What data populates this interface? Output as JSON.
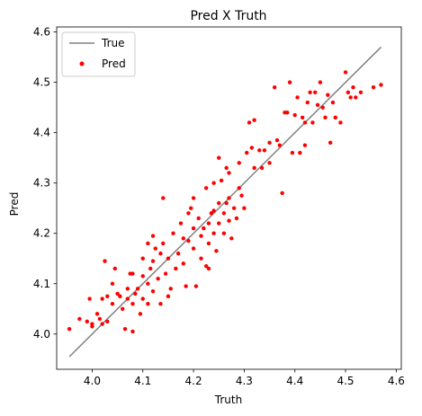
{
  "chart_data": {
    "type": "scatter",
    "title": "Pred X Truth",
    "xlabel": "Truth",
    "ylabel": "Pred",
    "xlim": [
      3.93,
      4.61
    ],
    "ylim": [
      3.93,
      4.61
    ],
    "xticks": [
      "4.0",
      "4.1",
      "4.2",
      "4.3",
      "4.4",
      "4.5",
      "4.6"
    ],
    "yticks": [
      "4.0",
      "4.1",
      "4.2",
      "4.3",
      "4.4",
      "4.5",
      "4.6"
    ],
    "grid": false,
    "legend": {
      "placement": "top-left",
      "entries": [
        {
          "label": "True",
          "marker": "line",
          "color": "#808080"
        },
        {
          "label": "Pred",
          "marker": "dot",
          "color": "#ff0000"
        }
      ]
    },
    "series": [
      {
        "name": "True",
        "kind": "line",
        "color": "#808080",
        "x": [
          3.955,
          4.57
        ],
        "y": [
          3.955,
          4.57
        ]
      },
      {
        "name": "Pred",
        "kind": "scatter",
        "color": "#ff0000",
        "points": [
          [
            3.955,
            4.01
          ],
          [
            3.975,
            4.03
          ],
          [
            3.99,
            4.025
          ],
          [
            3.995,
            4.07
          ],
          [
            4.0,
            4.02
          ],
          [
            4.0,
            4.015
          ],
          [
            4.01,
            4.04
          ],
          [
            4.015,
            4.03
          ],
          [
            4.02,
            4.02
          ],
          [
            4.02,
            4.07
          ],
          [
            4.025,
            4.145
          ],
          [
            4.03,
            4.075
          ],
          [
            4.03,
            4.025
          ],
          [
            4.04,
            4.06
          ],
          [
            4.04,
            4.1
          ],
          [
            4.045,
            4.13
          ],
          [
            4.05,
            4.08
          ],
          [
            4.055,
            4.075
          ],
          [
            4.06,
            4.05
          ],
          [
            4.065,
            4.01
          ],
          [
            4.07,
            4.09
          ],
          [
            4.07,
            4.07
          ],
          [
            4.075,
            4.12
          ],
          [
            4.08,
            4.12
          ],
          [
            4.08,
            4.06
          ],
          [
            4.08,
            4.005
          ],
          [
            4.085,
            4.08
          ],
          [
            4.09,
            4.09
          ],
          [
            4.095,
            4.04
          ],
          [
            4.1,
            4.115
          ],
          [
            4.1,
            4.15
          ],
          [
            4.1,
            4.07
          ],
          [
            4.11,
            4.18
          ],
          [
            4.11,
            4.06
          ],
          [
            4.11,
            4.1
          ],
          [
            4.115,
            4.13
          ],
          [
            4.12,
            4.195
          ],
          [
            4.12,
            4.145
          ],
          [
            4.12,
            4.085
          ],
          [
            4.125,
            4.17
          ],
          [
            4.13,
            4.11
          ],
          [
            4.135,
            4.06
          ],
          [
            4.135,
            4.16
          ],
          [
            4.14,
            4.27
          ],
          [
            4.14,
            4.18
          ],
          [
            4.145,
            4.12
          ],
          [
            4.15,
            4.075
          ],
          [
            4.15,
            4.15
          ],
          [
            4.155,
            4.09
          ],
          [
            4.16,
            4.2
          ],
          [
            4.165,
            4.13
          ],
          [
            4.17,
            4.16
          ],
          [
            4.175,
            4.22
          ],
          [
            4.18,
            4.19
          ],
          [
            4.18,
            4.14
          ],
          [
            4.185,
            4.095
          ],
          [
            4.19,
            4.24
          ],
          [
            4.19,
            4.185
          ],
          [
            4.195,
            4.25
          ],
          [
            4.2,
            4.27
          ],
          [
            4.2,
            4.21
          ],
          [
            4.2,
            4.17
          ],
          [
            4.205,
            4.095
          ],
          [
            4.21,
            4.23
          ],
          [
            4.215,
            4.195
          ],
          [
            4.215,
            4.15
          ],
          [
            4.22,
            4.21
          ],
          [
            4.225,
            4.135
          ],
          [
            4.225,
            4.29
          ],
          [
            4.23,
            4.13
          ],
          [
            4.23,
            4.22
          ],
          [
            4.23,
            4.18
          ],
          [
            4.235,
            4.24
          ],
          [
            4.24,
            4.3
          ],
          [
            4.24,
            4.245
          ],
          [
            4.24,
            4.2
          ],
          [
            4.245,
            4.165
          ],
          [
            4.25,
            4.35
          ],
          [
            4.25,
            4.26
          ],
          [
            4.25,
            4.22
          ],
          [
            4.255,
            4.305
          ],
          [
            4.26,
            4.24
          ],
          [
            4.26,
            4.2
          ],
          [
            4.265,
            4.33
          ],
          [
            4.265,
            4.26
          ],
          [
            4.27,
            4.32
          ],
          [
            4.27,
            4.27
          ],
          [
            4.27,
            4.225
          ],
          [
            4.275,
            4.19
          ],
          [
            4.28,
            4.25
          ],
          [
            4.285,
            4.23
          ],
          [
            4.29,
            4.34
          ],
          [
            4.29,
            4.29
          ],
          [
            4.295,
            4.275
          ],
          [
            4.3,
            4.25
          ],
          [
            4.305,
            4.36
          ],
          [
            4.31,
            4.42
          ],
          [
            4.315,
            4.37
          ],
          [
            4.32,
            4.425
          ],
          [
            4.32,
            4.33
          ],
          [
            4.33,
            4.365
          ],
          [
            4.335,
            4.33
          ],
          [
            4.34,
            4.365
          ],
          [
            4.35,
            4.34
          ],
          [
            4.35,
            4.38
          ],
          [
            4.36,
            4.49
          ],
          [
            4.365,
            4.385
          ],
          [
            4.37,
            4.375
          ],
          [
            4.375,
            4.28
          ],
          [
            4.38,
            4.44
          ],
          [
            4.385,
            4.44
          ],
          [
            4.39,
            4.5
          ],
          [
            4.395,
            4.36
          ],
          [
            4.4,
            4.435
          ],
          [
            4.405,
            4.47
          ],
          [
            4.41,
            4.36
          ],
          [
            4.415,
            4.43
          ],
          [
            4.42,
            4.375
          ],
          [
            4.42,
            4.42
          ],
          [
            4.425,
            4.46
          ],
          [
            4.43,
            4.48
          ],
          [
            4.435,
            4.42
          ],
          [
            4.44,
            4.48
          ],
          [
            4.445,
            4.455
          ],
          [
            4.45,
            4.5
          ],
          [
            4.455,
            4.45
          ],
          [
            4.46,
            4.43
          ],
          [
            4.465,
            4.475
          ],
          [
            4.47,
            4.38
          ],
          [
            4.475,
            4.46
          ],
          [
            4.48,
            4.43
          ],
          [
            4.49,
            4.42
          ],
          [
            4.5,
            4.52
          ],
          [
            4.505,
            4.48
          ],
          [
            4.51,
            4.47
          ],
          [
            4.515,
            4.49
          ],
          [
            4.52,
            4.47
          ],
          [
            4.53,
            4.48
          ],
          [
            4.555,
            4.49
          ],
          [
            4.57,
            4.495
          ]
        ]
      }
    ]
  }
}
